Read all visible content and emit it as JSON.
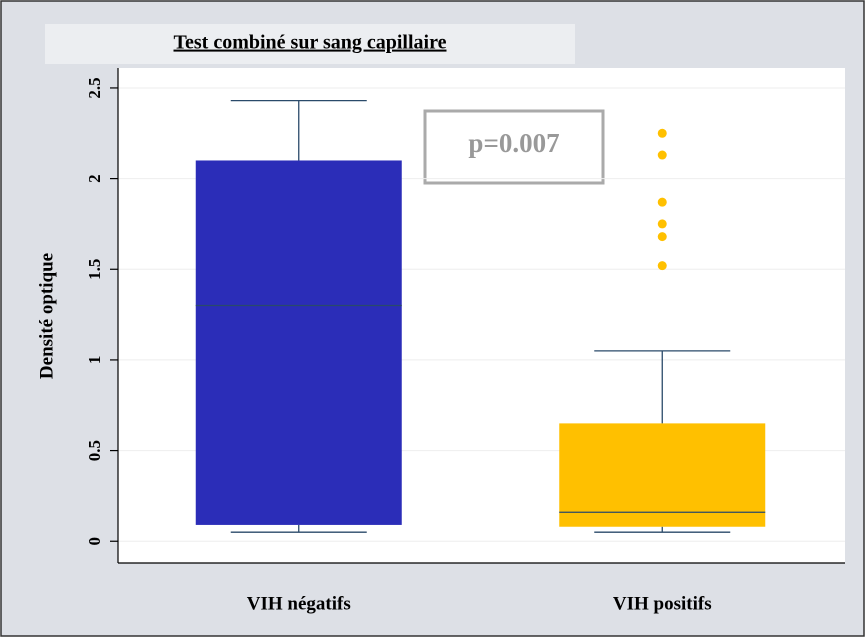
{
  "chart_data": {
    "type": "box",
    "title": "Test combiné sur sang capillaire",
    "y_label": "Densité optique",
    "annotation": "p=0.007",
    "categories": [
      "VIH négatifs",
      "VIH positifs"
    ],
    "boxes": [
      {
        "min": 0.05,
        "q1": 0.09,
        "median": 1.3,
        "q3": 2.1,
        "max": 2.43,
        "outliers": [],
        "color": "#2b2db8"
      },
      {
        "min": 0.05,
        "q1": 0.08,
        "median": 0.16,
        "q3": 0.65,
        "max": 1.05,
        "outliers": [
          2.25,
          2.13,
          1.87,
          1.75,
          1.68,
          1.52
        ],
        "color": "#ffc000"
      }
    ],
    "ylim": [
      -0.12,
      2.61
    ],
    "yticks": [
      0,
      0.5,
      1,
      1.5,
      2,
      2.5
    ],
    "grid": true
  }
}
